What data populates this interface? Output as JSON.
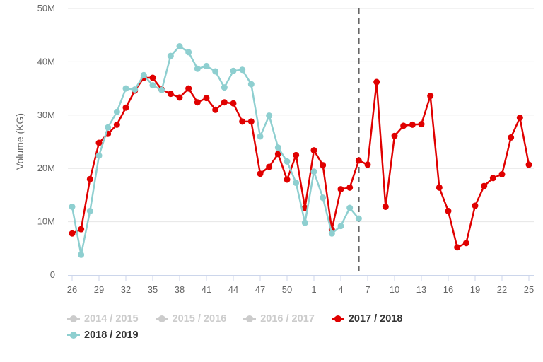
{
  "chart_data": {
    "type": "line",
    "ylabel": "Volume (KG)",
    "ylim": [
      0,
      50000000
    ],
    "y_ticks": [
      "0",
      "10M",
      "20M",
      "30M",
      "40M",
      "50M"
    ],
    "y_tick_values": [
      0,
      10000000,
      20000000,
      30000000,
      40000000,
      50000000
    ],
    "x_tick_labels": [
      "26",
      "29",
      "32",
      "35",
      "38",
      "41",
      "44",
      "47",
      "50",
      "1",
      "4",
      "7",
      "10",
      "13",
      "16",
      "19",
      "22",
      "25"
    ],
    "x_tick_positions": [
      0,
      3,
      6,
      9,
      12,
      15,
      18,
      21,
      24,
      27,
      30,
      33,
      36,
      39,
      42,
      45,
      48,
      51
    ],
    "x_point_count": 52,
    "marker_line_position": 32,
    "legend_position": "bottom-left",
    "grid": true,
    "series": [
      {
        "name": "2014 / 2015",
        "color": "#cccccc",
        "visible": false,
        "values": []
      },
      {
        "name": "2015 / 2016",
        "color": "#cccccc",
        "visible": false,
        "values": []
      },
      {
        "name": "2016 / 2017",
        "color": "#cccccc",
        "visible": false,
        "values": []
      },
      {
        "name": "2017 / 2018",
        "color": "#e00000",
        "visible": true,
        "values": [
          7800000,
          8600000,
          18000000,
          24800000,
          26500000,
          28200000,
          31400000,
          34600000,
          37000000,
          37000000,
          34800000,
          34000000,
          33300000,
          35000000,
          32400000,
          33200000,
          31000000,
          32400000,
          32200000,
          28800000,
          28800000,
          19000000,
          20300000,
          22700000,
          17900000,
          22500000,
          12600000,
          23400000,
          20600000,
          8500000,
          16100000,
          16400000,
          21500000,
          20700000,
          36200000,
          12800000,
          26100000,
          28000000,
          28200000,
          28300000,
          33600000,
          16400000,
          12000000,
          5200000,
          6000000,
          13000000,
          16700000,
          18200000,
          18900000,
          25800000,
          29500000,
          20700000
        ]
      },
      {
        "name": "2018 / 2019",
        "color": "#8ecfd0",
        "visible": true,
        "values": [
          12800000,
          3800000,
          12000000,
          22400000,
          27700000,
          30600000,
          35000000,
          34800000,
          37500000,
          35600000,
          34700000,
          41100000,
          42900000,
          41800000,
          38700000,
          39200000,
          38200000,
          35200000,
          38300000,
          38500000,
          35800000,
          26000000,
          29900000,
          23900000,
          21300000,
          17300000,
          9800000,
          19400000,
          14500000,
          7800000,
          9200000,
          12600000,
          10600000
        ]
      }
    ]
  }
}
